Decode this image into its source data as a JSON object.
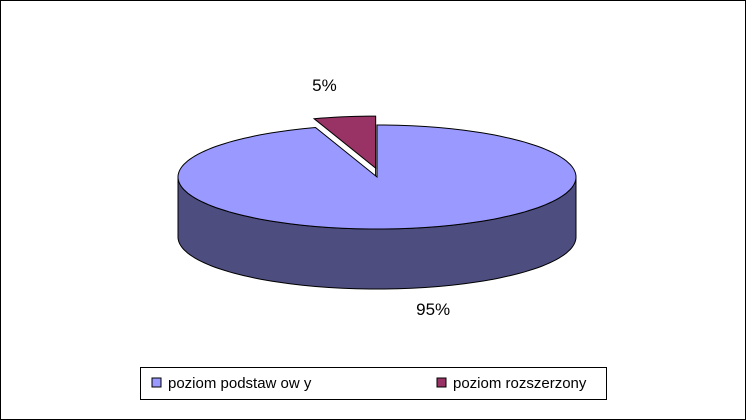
{
  "chart_data": {
    "type": "pie",
    "categories": [
      "poziom podstaw ow y",
      "poziom rozszerzony"
    ],
    "values": [
      95,
      5
    ],
    "value_labels": [
      "95%",
      "5%"
    ],
    "colors": [
      "#9999ff",
      "#993366"
    ],
    "side_colors": [
      "#4d4d80",
      "#4d1a33"
    ],
    "legend": "bottom"
  }
}
